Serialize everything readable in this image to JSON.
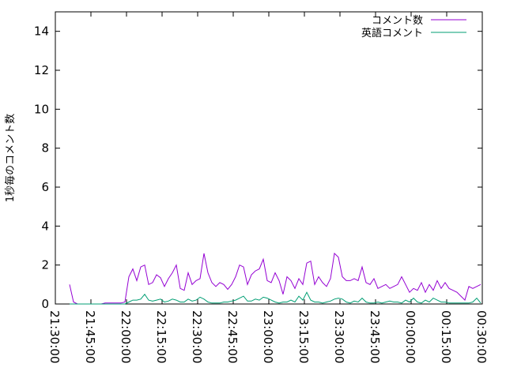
{
  "chart_data": {
    "type": "line",
    "title": "",
    "xlabel": "",
    "ylabel": "1秒毎のコメント数",
    "xlim": [
      "21:30:00",
      "00:30:00"
    ],
    "ylim": [
      0,
      15
    ],
    "xticks": [
      "21:30:00",
      "21:45:00",
      "22:00:00",
      "22:15:00",
      "22:30:00",
      "22:45:00",
      "23:00:00",
      "23:15:00",
      "23:30:00",
      "23:45:00",
      "00:00:00",
      "00:15:00",
      "00:30:00"
    ],
    "yticks": [
      0,
      2,
      4,
      6,
      8,
      10,
      12,
      14
    ],
    "grid": false,
    "legend": "top-right",
    "x_start": "21:36:00",
    "x_step_seconds": 100,
    "series": [
      {
        "name": "コメント数",
        "color": "#9400d3",
        "values": [
          1.0,
          0.1,
          0,
          0,
          0,
          0,
          0,
          0,
          0,
          0.05,
          0.05,
          0.05,
          0.05,
          0.05,
          0.1,
          1.4,
          1.8,
          1.2,
          1.9,
          2.0,
          1.0,
          1.1,
          1.5,
          1.35,
          0.9,
          1.3,
          1.6,
          2.0,
          0.8,
          0.7,
          1.6,
          1.0,
          1.2,
          1.3,
          2.6,
          1.6,
          1.1,
          0.9,
          1.1,
          1.0,
          0.75,
          1.0,
          1.4,
          2.0,
          1.9,
          1.0,
          1.5,
          1.7,
          1.8,
          2.3,
          1.2,
          1.1,
          1.6,
          1.2,
          0.5,
          1.4,
          1.2,
          0.8,
          1.3,
          1.0,
          2.1,
          2.2,
          1.0,
          1.4,
          1.1,
          0.9,
          1.3,
          2.6,
          2.4,
          1.4,
          1.2,
          1.2,
          1.3,
          1.2,
          1.9,
          1.1,
          1.0,
          1.3,
          0.8,
          0.9,
          1.0,
          0.8,
          0.9,
          1.0,
          1.4,
          1.0,
          0.6,
          0.8,
          0.7,
          1.1,
          0.6,
          1.0,
          0.7,
          1.2,
          0.8,
          1.1,
          0.8,
          0.7,
          0.6,
          0.4,
          0.2,
          0.9,
          0.8,
          0.9,
          1.0
        ]
      },
      {
        "name": "英語コメント",
        "color": "#009e73",
        "values": [
          0,
          0,
          0,
          0,
          0,
          0,
          0,
          0,
          0,
          0,
          0,
          0,
          0,
          0,
          0,
          0.1,
          0.2,
          0.2,
          0.25,
          0.5,
          0.2,
          0.15,
          0.2,
          0.25,
          0.1,
          0.15,
          0.25,
          0.2,
          0.1,
          0.1,
          0.25,
          0.15,
          0.2,
          0.35,
          0.25,
          0.1,
          0.05,
          0.05,
          0.05,
          0.1,
          0.1,
          0.15,
          0.2,
          0.3,
          0.4,
          0.15,
          0.15,
          0.25,
          0.2,
          0.35,
          0.3,
          0.2,
          0.1,
          0.05,
          0.1,
          0.1,
          0.2,
          0.1,
          0.4,
          0.2,
          0.6,
          0.2,
          0.1,
          0.1,
          0.05,
          0.1,
          0.15,
          0.25,
          0.3,
          0.25,
          0.1,
          0.05,
          0.15,
          0.1,
          0.3,
          0.1,
          0.05,
          0.05,
          0.1,
          0.05,
          0.1,
          0.15,
          0.1,
          0.1,
          0.05,
          0.2,
          0.1,
          0.3,
          0.1,
          0.05,
          0.2,
          0.1,
          0.3,
          0.2,
          0.1,
          0.1,
          0.05,
          0.05,
          0.05,
          0.05,
          0.05,
          0.05,
          0.1,
          0.3,
          0.05
        ]
      }
    ]
  }
}
